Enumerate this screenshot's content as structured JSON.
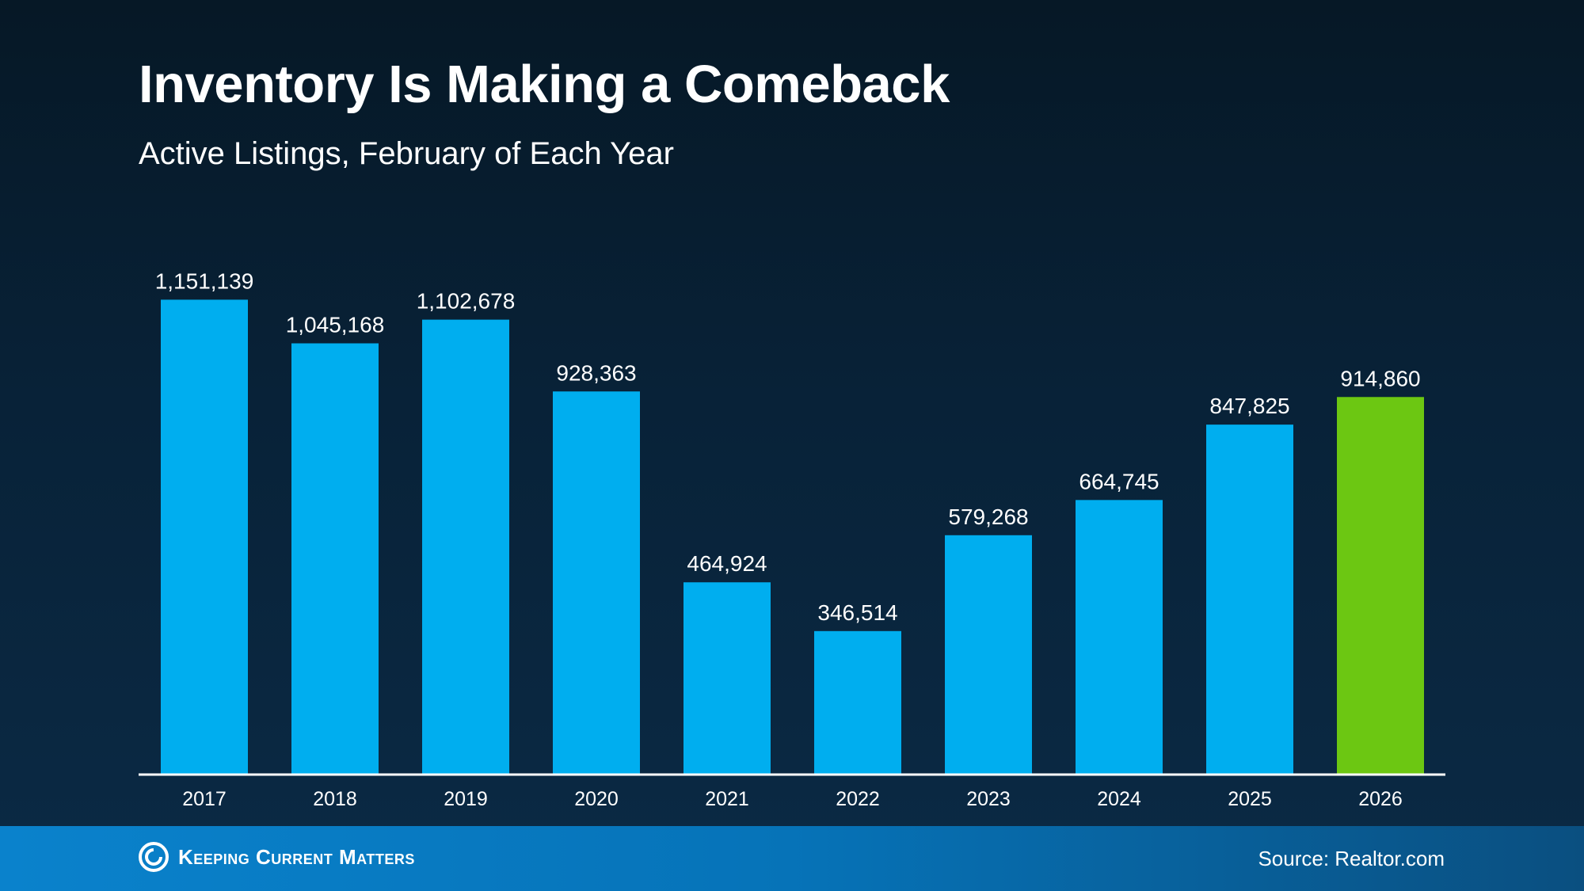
{
  "header": {
    "title": "Inventory Is Making a Comeback",
    "subtitle": "Active Listings, February of Each Year"
  },
  "footer": {
    "logo_text": "Keeping Current Matters",
    "source": "Source: Realtor.com"
  },
  "colors": {
    "bar": "#00aeef",
    "highlight": "#6cc712",
    "axis": "#ffffff"
  },
  "chart_data": {
    "type": "bar",
    "title": "Inventory Is Making a Comeback",
    "subtitle": "Active Listings, February of Each Year",
    "categories": [
      "2017",
      "2018",
      "2019",
      "2020",
      "2021",
      "2022",
      "2023",
      "2024",
      "2025",
      "2026"
    ],
    "values": [
      1151139,
      1045168,
      1102678,
      928363,
      464924,
      346514,
      579268,
      664745,
      847825,
      914860
    ],
    "labels": [
      "1,151,139",
      "1,045,168",
      "1,102,678",
      "928,363",
      "464,924",
      "346,514",
      "579,268",
      "664,745",
      "847,825",
      "914,860"
    ],
    "highlight_category": "2026",
    "ylim": [
      0,
      1200000
    ],
    "grid": false,
    "xlabel": "",
    "ylabel": ""
  }
}
